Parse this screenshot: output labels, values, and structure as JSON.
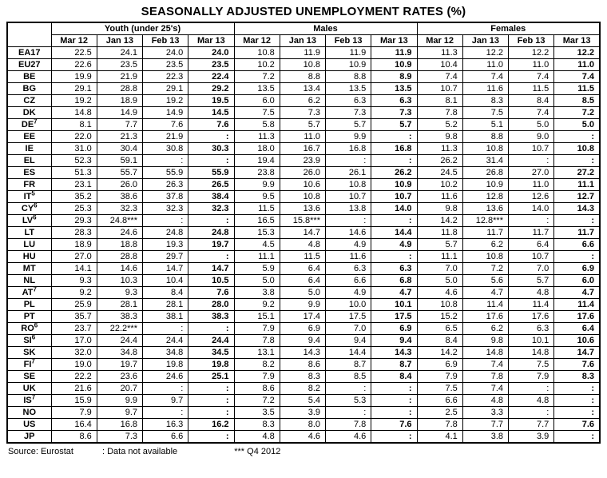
{
  "title": "SEASONALLY ADJUSTED UNEMPLOYMENT RATES (%)",
  "table": {
    "groups": [
      {
        "label": "Youth (under 25's)"
      },
      {
        "label": "Males"
      },
      {
        "label": "Females"
      }
    ],
    "sub_headers": [
      "Mar 12",
      "Jan 13",
      "Feb 13",
      "Mar 13"
    ],
    "rows": [
      {
        "country": "EA17",
        "sup": "",
        "youth": [
          "22.5",
          "24.1",
          "24.0",
          "24.0"
        ],
        "males": [
          "10.8",
          "11.9",
          "11.9",
          "11.9"
        ],
        "females": [
          "11.3",
          "12.2",
          "12.2",
          "12.2"
        ]
      },
      {
        "country": "EU27",
        "sup": "",
        "youth": [
          "22.6",
          "23.5",
          "23.5",
          "23.5"
        ],
        "males": [
          "10.2",
          "10.8",
          "10.9",
          "10.9"
        ],
        "females": [
          "10.4",
          "11.0",
          "11.0",
          "11.0"
        ]
      },
      {
        "country": "BE",
        "sup": "",
        "youth": [
          "19.9",
          "21.9",
          "22.3",
          "22.4"
        ],
        "males": [
          "7.2",
          "8.8",
          "8.8",
          "8.9"
        ],
        "females": [
          "7.4",
          "7.4",
          "7.4",
          "7.4"
        ]
      },
      {
        "country": "BG",
        "sup": "",
        "youth": [
          "29.1",
          "28.8",
          "29.1",
          "29.2"
        ],
        "males": [
          "13.5",
          "13.4",
          "13.5",
          "13.5"
        ],
        "females": [
          "10.7",
          "11.6",
          "11.5",
          "11.5"
        ]
      },
      {
        "country": "CZ",
        "sup": "",
        "youth": [
          "19.2",
          "18.9",
          "19.2",
          "19.5"
        ],
        "males": [
          "6.0",
          "6.2",
          "6.3",
          "6.3"
        ],
        "females": [
          "8.1",
          "8.3",
          "8.4",
          "8.5"
        ]
      },
      {
        "country": "DK",
        "sup": "",
        "youth": [
          "14.8",
          "14.9",
          "14.9",
          "14.5"
        ],
        "males": [
          "7.5",
          "7.3",
          "7.3",
          "7.3"
        ],
        "females": [
          "7.8",
          "7.5",
          "7.4",
          "7.2"
        ]
      },
      {
        "country": "DE",
        "sup": "7",
        "youth": [
          "8.1",
          "7.7",
          "7.6",
          "7.6"
        ],
        "males": [
          "5.8",
          "5.7",
          "5.7",
          "5.7"
        ],
        "females": [
          "5.2",
          "5.1",
          "5.0",
          "5.0"
        ]
      },
      {
        "country": "EE",
        "sup": "",
        "youth": [
          "22.0",
          "21.3",
          "21.9",
          ":"
        ],
        "males": [
          "11.3",
          "11.0",
          "9.9",
          ":"
        ],
        "females": [
          "9.8",
          "8.8",
          "9.0",
          ":"
        ]
      },
      {
        "country": "IE",
        "sup": "",
        "youth": [
          "31.0",
          "30.4",
          "30.8",
          "30.3"
        ],
        "males": [
          "18.0",
          "16.7",
          "16.8",
          "16.8"
        ],
        "females": [
          "11.3",
          "10.8",
          "10.7",
          "10.8"
        ]
      },
      {
        "country": "EL",
        "sup": "",
        "youth": [
          "52.3",
          "59.1",
          ":",
          ":"
        ],
        "males": [
          "19.4",
          "23.9",
          ":",
          ":"
        ],
        "females": [
          "26.2",
          "31.4",
          ":",
          ":"
        ]
      },
      {
        "country": "ES",
        "sup": "",
        "youth": [
          "51.3",
          "55.7",
          "55.9",
          "55.9"
        ],
        "males": [
          "23.8",
          "26.0",
          "26.1",
          "26.2"
        ],
        "females": [
          "24.5",
          "26.8",
          "27.0",
          "27.2"
        ]
      },
      {
        "country": "FR",
        "sup": "",
        "youth": [
          "23.1",
          "26.0",
          "26.3",
          "26.5"
        ],
        "males": [
          "9.9",
          "10.6",
          "10.8",
          "10.9"
        ],
        "females": [
          "10.2",
          "10.9",
          "11.0",
          "11.1"
        ]
      },
      {
        "country": "IT",
        "sup": "5",
        "youth": [
          "35.2",
          "38.6",
          "37.8",
          "38.4"
        ],
        "males": [
          "9.5",
          "10.8",
          "10.7",
          "10.7"
        ],
        "females": [
          "11.6",
          "12.8",
          "12.6",
          "12.7"
        ]
      },
      {
        "country": "CY",
        "sup": "6",
        "youth": [
          "25.3",
          "32.3",
          "32.3",
          "32.3"
        ],
        "males": [
          "11.5",
          "13.6",
          "13.8",
          "14.0"
        ],
        "females": [
          "9.8",
          "13.6",
          "14.0",
          "14.3"
        ]
      },
      {
        "country": "LV",
        "sup": "6",
        "youth": [
          "29.3",
          "24.8***",
          ":",
          ":"
        ],
        "males": [
          "16.5",
          "15.8***",
          ":",
          ":"
        ],
        "females": [
          "14.2",
          "12.8***",
          ":",
          ":"
        ]
      },
      {
        "country": "LT",
        "sup": "",
        "youth": [
          "28.3",
          "24.6",
          "24.8",
          "24.8"
        ],
        "males": [
          "15.3",
          "14.7",
          "14.6",
          "14.4"
        ],
        "females": [
          "11.8",
          "11.7",
          "11.7",
          "11.7"
        ]
      },
      {
        "country": "LU",
        "sup": "",
        "youth": [
          "18.9",
          "18.8",
          "19.3",
          "19.7"
        ],
        "males": [
          "4.5",
          "4.8",
          "4.9",
          "4.9"
        ],
        "females": [
          "5.7",
          "6.2",
          "6.4",
          "6.6"
        ]
      },
      {
        "country": "HU",
        "sup": "",
        "youth": [
          "27.0",
          "28.8",
          "29.7",
          ":"
        ],
        "males": [
          "11.1",
          "11.5",
          "11.6",
          ":"
        ],
        "females": [
          "11.1",
          "10.8",
          "10.7",
          ":"
        ]
      },
      {
        "country": "MT",
        "sup": "",
        "youth": [
          "14.1",
          "14.6",
          "14.7",
          "14.7"
        ],
        "males": [
          "5.9",
          "6.4",
          "6.3",
          "6.3"
        ],
        "females": [
          "7.0",
          "7.2",
          "7.0",
          "6.9"
        ]
      },
      {
        "country": "NL",
        "sup": "",
        "youth": [
          "9.3",
          "10.3",
          "10.4",
          "10.5"
        ],
        "males": [
          "5.0",
          "6.4",
          "6.6",
          "6.8"
        ],
        "females": [
          "5.0",
          "5.6",
          "5.7",
          "6.0"
        ]
      },
      {
        "country": "AT",
        "sup": "7",
        "youth": [
          "9.2",
          "9.3",
          "8.4",
          "7.6"
        ],
        "males": [
          "3.8",
          "5.0",
          "4.9",
          "4.7"
        ],
        "females": [
          "4.6",
          "4.7",
          "4.8",
          "4.7"
        ]
      },
      {
        "country": "PL",
        "sup": "",
        "youth": [
          "25.9",
          "28.1",
          "28.1",
          "28.0"
        ],
        "males": [
          "9.2",
          "9.9",
          "10.0",
          "10.1"
        ],
        "females": [
          "10.8",
          "11.4",
          "11.4",
          "11.4"
        ]
      },
      {
        "country": "PT",
        "sup": "",
        "youth": [
          "35.7",
          "38.3",
          "38.1",
          "38.3"
        ],
        "males": [
          "15.1",
          "17.4",
          "17.5",
          "17.5"
        ],
        "females": [
          "15.2",
          "17.6",
          "17.6",
          "17.6"
        ]
      },
      {
        "country": "RO",
        "sup": "6",
        "youth": [
          "23.7",
          "22.2***",
          ":",
          ":"
        ],
        "males": [
          "7.9",
          "6.9",
          "7.0",
          "6.9"
        ],
        "females": [
          "6.5",
          "6.2",
          "6.3",
          "6.4"
        ]
      },
      {
        "country": "SI",
        "sup": "6",
        "youth": [
          "17.0",
          "24.4",
          "24.4",
          "24.4"
        ],
        "males": [
          "7.8",
          "9.4",
          "9.4",
          "9.4"
        ],
        "females": [
          "8.4",
          "9.8",
          "10.1",
          "10.6"
        ]
      },
      {
        "country": "SK",
        "sup": "",
        "youth": [
          "32.0",
          "34.8",
          "34.8",
          "34.5"
        ],
        "males": [
          "13.1",
          "14.3",
          "14.4",
          "14.3"
        ],
        "females": [
          "14.2",
          "14.8",
          "14.8",
          "14.7"
        ]
      },
      {
        "country": "FI",
        "sup": "7",
        "youth": [
          "19.0",
          "19.7",
          "19.8",
          "19.8"
        ],
        "males": [
          "8.2",
          "8.6",
          "8.7",
          "8.7"
        ],
        "females": [
          "6.9",
          "7.4",
          "7.5",
          "7.6"
        ]
      },
      {
        "country": "SE",
        "sup": "",
        "youth": [
          "22.2",
          "23.6",
          "24.6",
          "25.1"
        ],
        "males": [
          "7.9",
          "8.3",
          "8.5",
          "8.4"
        ],
        "females": [
          "7.9",
          "7.8",
          "7.9",
          "8.3"
        ]
      },
      {
        "country": "UK",
        "sup": "",
        "youth": [
          "21.6",
          "20.7",
          ":",
          ":"
        ],
        "males": [
          "8.6",
          "8.2",
          ":",
          ":"
        ],
        "females": [
          "7.5",
          "7.4",
          ":",
          ":"
        ]
      },
      {
        "country": "IS",
        "sup": "7",
        "youth": [
          "15.9",
          "9.9",
          "9.7",
          ":"
        ],
        "males": [
          "7.2",
          "5.4",
          "5.3",
          ":"
        ],
        "females": [
          "6.6",
          "4.8",
          "4.8",
          ":"
        ]
      },
      {
        "country": "NO",
        "sup": "",
        "youth": [
          "7.9",
          "9.7",
          ":",
          ":"
        ],
        "males": [
          "3.5",
          "3.9",
          ":",
          ":"
        ],
        "females": [
          "2.5",
          "3.3",
          ":",
          ":"
        ]
      },
      {
        "country": "US",
        "sup": "",
        "youth": [
          "16.4",
          "16.8",
          "16.3",
          "16.2"
        ],
        "males": [
          "8.3",
          "8.0",
          "7.8",
          "7.6"
        ],
        "females": [
          "7.8",
          "7.7",
          "7.7",
          "7.6"
        ]
      },
      {
        "country": "JP",
        "sup": "",
        "youth": [
          "8.6",
          "7.3",
          "6.6",
          ":"
        ],
        "males": [
          "4.8",
          "4.6",
          "4.6",
          ":"
        ],
        "females": [
          "4.1",
          "3.8",
          "3.9",
          ":"
        ]
      }
    ]
  },
  "footer": {
    "source": "Source: Eurostat",
    "not_available": ": Data not available",
    "q4_note": "*** Q4 2012"
  }
}
